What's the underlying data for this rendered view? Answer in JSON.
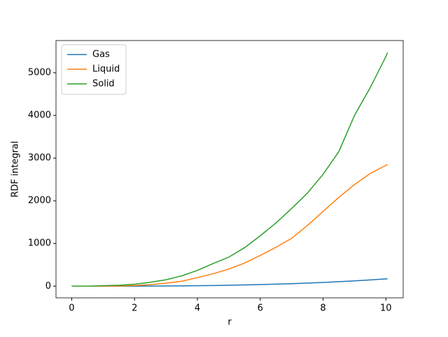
{
  "chart_data": {
    "type": "line",
    "xlabel": "r",
    "ylabel": "RDF integral",
    "x": [
      0,
      0.5,
      1,
      1.5,
      2,
      2.5,
      3,
      3.5,
      4,
      4.5,
      5,
      5.5,
      6,
      6.5,
      7,
      7.5,
      8,
      8.5,
      9,
      9.5,
      10,
      10.05
    ],
    "series": [
      {
        "name": "Gas",
        "color": "#1f77b4",
        "values": [
          0,
          0.02,
          0.2,
          0.6,
          1.4,
          2.7,
          4.6,
          7.3,
          10.9,
          15.5,
          21,
          28,
          37,
          47,
          58,
          72,
          87,
          104,
          124,
          146,
          170,
          173
        ]
      },
      {
        "name": "Liquid",
        "color": "#ff7f0e",
        "values": [
          0,
          0,
          1,
          4,
          15,
          35,
          70,
          115,
          200,
          290,
          400,
          540,
          720,
          910,
          1120,
          1420,
          1750,
          2080,
          2380,
          2640,
          2830,
          2850
        ]
      },
      {
        "name": "Solid",
        "color": "#2ca02c",
        "values": [
          0,
          0,
          10,
          20,
          45,
          90,
          150,
          240,
          370,
          530,
          680,
          900,
          1180,
          1480,
          1820,
          2180,
          2620,
          3150,
          4000,
          4650,
          5380,
          5470
        ]
      }
    ],
    "xlim": [
      -0.5,
      10.55
    ],
    "ylim": [
      -274,
      5754
    ],
    "xticks": [
      0,
      2,
      4,
      6,
      8,
      10
    ],
    "yticks": [
      0,
      1000,
      2000,
      3000,
      4000,
      5000
    ],
    "legend": "upper left"
  }
}
